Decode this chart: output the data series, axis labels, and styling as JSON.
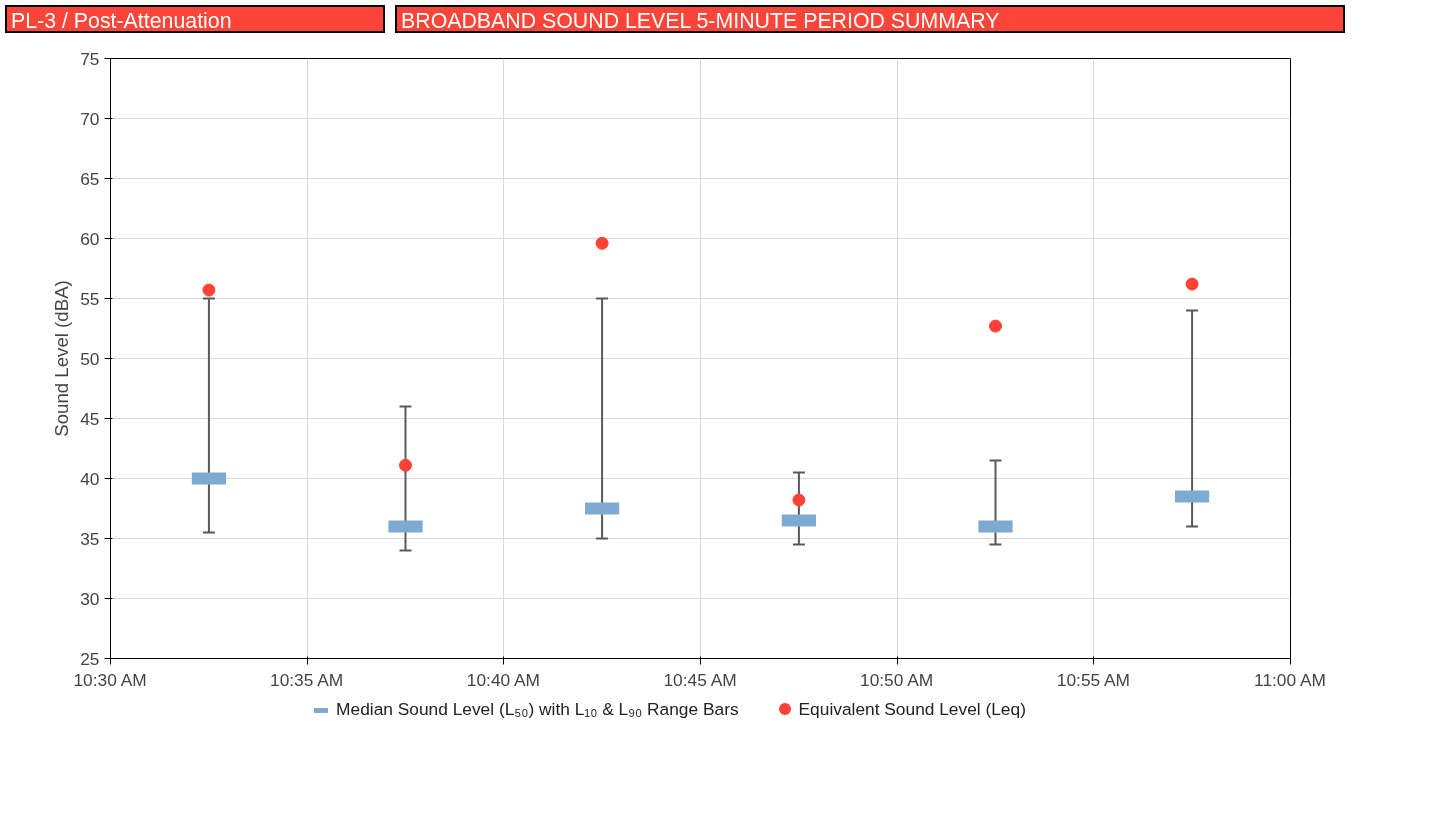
{
  "chart_data": {
    "type": "scatter",
    "title": "BROADBAND SOUND LEVEL 5-MINUTE PERIOD SUMMARY",
    "subtitle": "PL-3 / Post-Attenuation",
    "ylabel": "Sound Level (dBA)",
    "x": [
      10.5417,
      10.625,
      10.7083,
      10.7917,
      10.875,
      10.9583
    ],
    "series": [
      {
        "name": "Median Sound Level (L₅₀) with L₁₀ & L₉₀ Range Bars",
        "color": "#7eaad2",
        "marker": "square",
        "values": [
          40.0,
          36.0,
          37.5,
          36.5,
          36.0,
          38.5
        ],
        "errors": [
          [
            35.5,
            55.0
          ],
          [
            34.0,
            46.0
          ],
          [
            35.0,
            55.0
          ],
          [
            34.5,
            40.5
          ],
          [
            34.5,
            41.5
          ],
          [
            36.0,
            54.0
          ]
        ]
      },
      {
        "name": "Equivalent Sound Level (Leq)",
        "color": "#ff4136",
        "marker": "circle",
        "values": [
          55.7,
          41.1,
          59.6,
          38.2,
          52.7,
          56.2
        ]
      }
    ],
    "xlim": [
      10.5,
      11.0
    ],
    "xticks": [
      {
        "value": 10.5,
        "label": "10:30 AM"
      },
      {
        "value": 10.5833,
        "label": "10:35 AM"
      },
      {
        "value": 10.6667,
        "label": "10:40 AM"
      },
      {
        "value": 10.75,
        "label": "10:45 AM"
      },
      {
        "value": 10.8333,
        "label": "10:50 AM"
      },
      {
        "value": 10.9167,
        "label": "10:55 AM"
      },
      {
        "value": 11.0,
        "label": "11:00 AM"
      }
    ],
    "ylim": [
      25,
      75
    ],
    "yticks": [
      25,
      30,
      35,
      40,
      45,
      50,
      55,
      60,
      65,
      70,
      75
    ],
    "grid": true,
    "legend": "bottom"
  }
}
